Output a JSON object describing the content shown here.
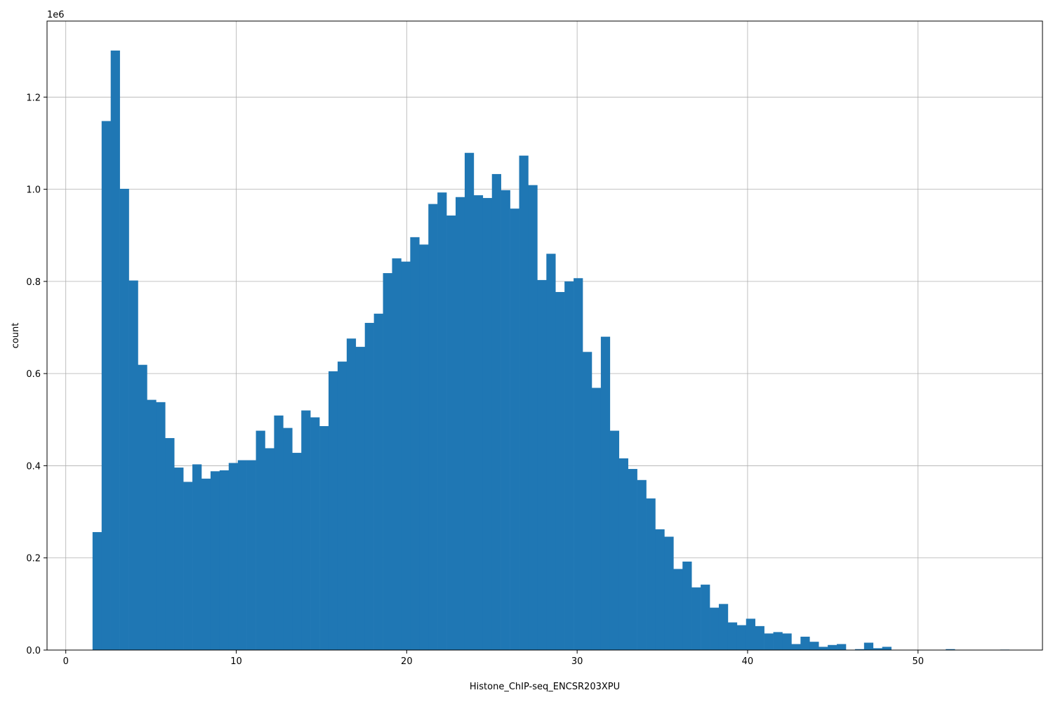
{
  "chart_data": {
    "type": "bar",
    "title": "",
    "xlabel": "Histone_ChIP-seq_ENCSR203XPU",
    "ylabel": "count",
    "y_multiplier_label": "1e6",
    "y_multiplier": 1000000,
    "xlim": [
      -1.1,
      57.3
    ],
    "ylim": [
      0,
      1.365
    ],
    "xticks": [
      0,
      10,
      20,
      30,
      40,
      50
    ],
    "yticks": [
      0.0,
      0.2,
      0.4,
      0.6,
      0.8,
      1.0,
      1.2
    ],
    "ytick_labels": [
      "0.0",
      "0.2",
      "0.4",
      "0.6",
      "0.8",
      "1.0",
      "1.2"
    ],
    "grid": true,
    "bar_color": "#1f77b4",
    "bin_start": 1.57,
    "bin_width": 0.5325,
    "values": [
      0.256,
      1.148,
      1.301,
      1.001,
      0.802,
      0.619,
      0.543,
      0.538,
      0.46,
      0.396,
      0.365,
      0.403,
      0.372,
      0.388,
      0.39,
      0.406,
      0.412,
      0.412,
      0.476,
      0.438,
      0.509,
      0.482,
      0.428,
      0.52,
      0.505,
      0.486,
      0.605,
      0.626,
      0.676,
      0.658,
      0.71,
      0.73,
      0.818,
      0.85,
      0.843,
      0.896,
      0.88,
      0.968,
      0.993,
      0.943,
      0.983,
      1.079,
      0.987,
      0.981,
      1.033,
      0.998,
      0.958,
      1.073,
      1.009,
      0.803,
      0.86,
      0.777,
      0.8,
      0.807,
      0.647,
      0.569,
      0.68,
      0.476,
      0.416,
      0.393,
      0.369,
      0.329,
      0.262,
      0.246,
      0.176,
      0.192,
      0.136,
      0.142,
      0.092,
      0.1,
      0.06,
      0.054,
      0.068,
      0.052,
      0.036,
      0.039,
      0.036,
      0.013,
      0.029,
      0.018,
      0.007,
      0.011,
      0.013,
      0.0,
      0.002,
      0.016,
      0.004,
      0.007,
      0.0,
      0.0,
      0.0,
      0.0,
      0.0,
      0.0,
      0.002,
      0.0,
      0.0,
      0.0,
      0.0,
      0.0,
      0.001,
      0.0
    ]
  }
}
